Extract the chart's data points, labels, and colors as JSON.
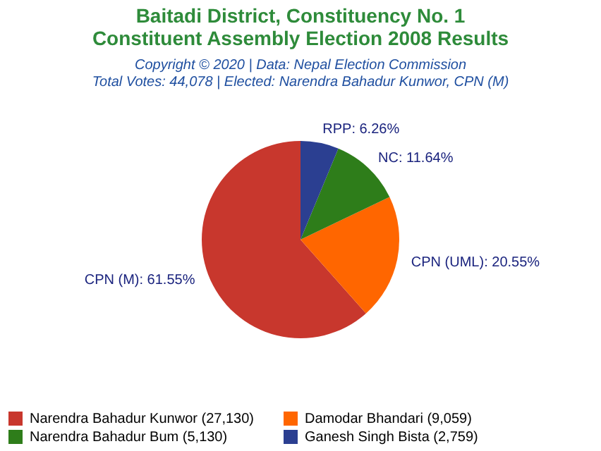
{
  "chart_data": {
    "type": "pie",
    "title": "Baitadi District, Constituency No. 1\nConstituent Assembly Election 2008 Results",
    "subtitle": "Copyright © 2020 | Data: Nepal Election Commission\nTotal Votes: 44,078 | Elected: Narendra Bahadur Kunwor, CPN (M)",
    "categories": [
      "Narendra Bahadur Kunwor (27,130)",
      "Damodar Bhandari (9,059)",
      "Narendra Bahadur Bum (5,130)",
      "Ganesh Singh Bista (2,759)"
    ],
    "values": [
      61.55,
      20.55,
      11.64,
      6.26
    ],
    "colors": [
      "#c8372d",
      "#ff6600",
      "#2e7d1a",
      "#2b3f91"
    ],
    "value_labels": [
      "CPN (M): 61.55%",
      "CPN (UML): 20.55%",
      "NC: 11.64%",
      "RPP: 6.26%"
    ],
    "legend": "bottom"
  }
}
